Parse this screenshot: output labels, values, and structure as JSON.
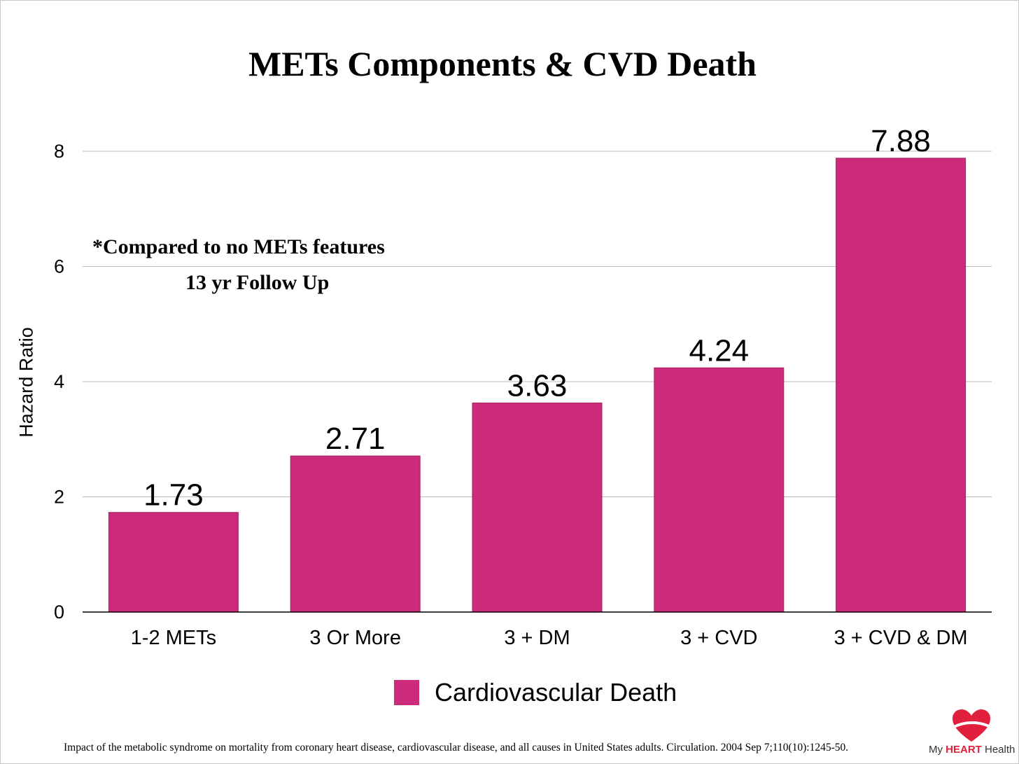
{
  "chart_data": {
    "type": "bar",
    "title": "METs Components & CVD Death",
    "xlabel": "",
    "ylabel": "Hazard Ratio",
    "categories": [
      "1-2 METs",
      "3 Or More",
      "3 + DM",
      "3 + CVD",
      "3 + CVD & DM"
    ],
    "series": [
      {
        "name": "Cardiovascular Death",
        "values": [
          1.73,
          2.71,
          3.63,
          4.24,
          7.88
        ],
        "labels": [
          "1.73",
          "2.71",
          "3.63",
          "4.24",
          "7.88"
        ],
        "color": "#cc2a7a"
      }
    ],
    "ylim": [
      0,
      8
    ],
    "yticks": [
      "0",
      "2",
      "4",
      "6",
      "8"
    ],
    "grid": true,
    "legend_position": "bottom",
    "annotations": [
      "*Compared to no METs features",
      "13 yr Follow Up"
    ]
  },
  "citation": "Impact of the metabolic syndrome on mortality from coronary heart disease, cardiovascular disease, and all causes in United States adults. Circulation. 2004 Sep 7;110(10):1245-50.",
  "logo": {
    "prefix": "My ",
    "emphasis": "HEART",
    "suffix": " Health",
    "color": "#e0203c"
  }
}
